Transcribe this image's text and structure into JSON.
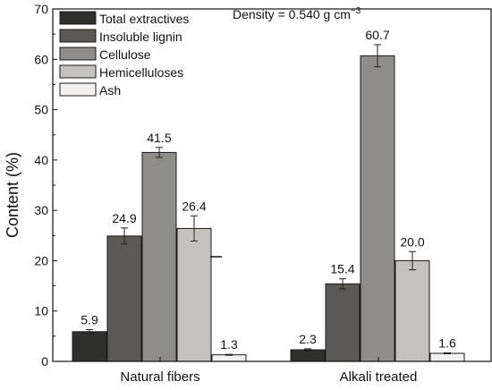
{
  "chart_data": {
    "type": "bar",
    "title": "",
    "xlabel": "",
    "ylabel": "Content (%)",
    "ylim": [
      0,
      70
    ],
    "yticks": [
      0,
      10,
      20,
      30,
      40,
      50,
      60,
      70
    ],
    "grid": false,
    "legend_position": "top-left",
    "categories": [
      "Natural fibers",
      "Alkali treated"
    ],
    "series": [
      {
        "name": "Total extractives",
        "color": "#2f302d",
        "values": [
          5.9,
          2.3
        ],
        "errors": [
          0.4,
          0.2
        ],
        "labels": [
          "5.9",
          "2.3"
        ]
      },
      {
        "name": "Insoluble lignin",
        "color": "#5b5855",
        "values": [
          24.9,
          15.4
        ],
        "errors": [
          1.6,
          1.0
        ],
        "labels": [
          "24.9",
          "15.4"
        ]
      },
      {
        "name": "Cellulose",
        "color": "#8f8d8a",
        "values": [
          41.5,
          60.7
        ],
        "errors": [
          1.0,
          2.2
        ],
        "labels": [
          "41.5",
          "60.7"
        ]
      },
      {
        "name": "Hemicelluloses",
        "color": "#c4c1bf",
        "values": [
          26.4,
          20.0
        ],
        "errors": [
          2.5,
          1.8
        ],
        "labels": [
          "26.4",
          "20.0"
        ]
      },
      {
        "name": "Ash",
        "color": "#f2f1f0",
        "values": [
          1.3,
          1.6
        ],
        "errors": [
          0.1,
          0.1
        ],
        "labels": [
          "1.3",
          "1.6"
        ]
      }
    ],
    "annotation": {
      "text_prefix": "Density = 0.540 g cm",
      "superscript": "−3"
    }
  }
}
